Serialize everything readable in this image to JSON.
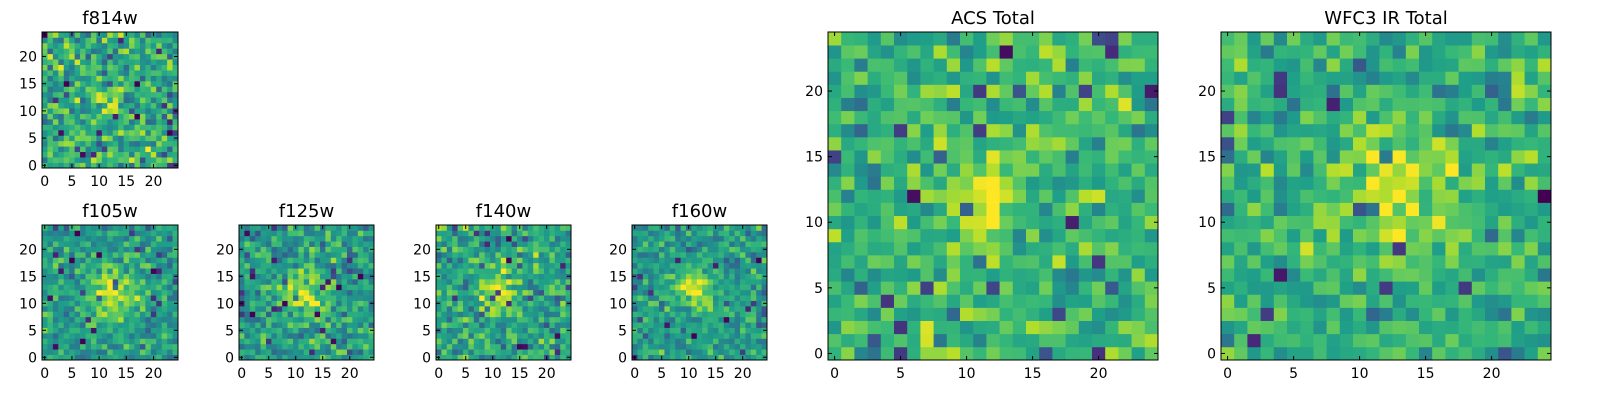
{
  "chart_data": [
    {
      "type": "heatmap",
      "title": "f814w",
      "size": 25,
      "xticks": [
        0,
        5,
        10,
        15,
        20
      ],
      "yticks": [
        0,
        5,
        10,
        15,
        20
      ],
      "xlim": [
        0,
        25
      ],
      "ylim": [
        0,
        25
      ],
      "grid": false,
      "colormap": "viridis",
      "source": {
        "x": 11.5,
        "y": 11.5,
        "sigma": 1.6,
        "peak": 0.32,
        "base": 0.62,
        "noise": 0.3
      }
    },
    {
      "type": "heatmap",
      "title": "f105w",
      "size": 25,
      "xticks": [
        0,
        5,
        10,
        15,
        20
      ],
      "yticks": [
        0,
        5,
        10,
        15,
        20
      ],
      "xlim": [
        0,
        25
      ],
      "ylim": [
        0,
        25
      ],
      "grid": false,
      "colormap": "viridis",
      "source": {
        "x": 12.5,
        "y": 11.5,
        "sigma": 3.0,
        "peak": 0.38,
        "base": 0.55,
        "noise": 0.22
      }
    },
    {
      "type": "heatmap",
      "title": "f125w",
      "size": 25,
      "xticks": [
        0,
        5,
        10,
        15,
        20
      ],
      "yticks": [
        0,
        5,
        10,
        15,
        20
      ],
      "xlim": [
        0,
        25
      ],
      "ylim": [
        0,
        25
      ],
      "grid": false,
      "colormap": "viridis",
      "source": {
        "x": 12.0,
        "y": 11.5,
        "sigma": 2.8,
        "peak": 0.35,
        "base": 0.55,
        "noise": 0.24
      }
    },
    {
      "type": "heatmap",
      "title": "f140w",
      "size": 25,
      "xticks": [
        0,
        5,
        10,
        15,
        20
      ],
      "yticks": [
        0,
        5,
        10,
        15,
        20
      ],
      "xlim": [
        0,
        25
      ],
      "ylim": [
        0,
        25
      ],
      "grid": false,
      "colormap": "viridis",
      "source": {
        "x": 11.5,
        "y": 12.5,
        "sigma": 2.6,
        "peak": 0.33,
        "base": 0.58,
        "noise": 0.26
      }
    },
    {
      "type": "heatmap",
      "title": "f160w",
      "size": 25,
      "xticks": [
        0,
        5,
        10,
        15,
        20
      ],
      "yticks": [
        0,
        5,
        10,
        15,
        20
      ],
      "xlim": [
        0,
        25
      ],
      "ylim": [
        0,
        25
      ],
      "grid": false,
      "colormap": "viridis",
      "source": {
        "x": 11.0,
        "y": 12.5,
        "sigma": 2.4,
        "peak": 0.4,
        "base": 0.55,
        "noise": 0.22
      }
    },
    {
      "type": "heatmap",
      "title": "ACS Total",
      "size": 25,
      "xticks": [
        0,
        5,
        10,
        15,
        20
      ],
      "yticks": [
        0,
        5,
        10,
        15,
        20
      ],
      "xlim": [
        0,
        25
      ],
      "ylim": [
        0,
        25
      ],
      "grid": false,
      "colormap": "viridis",
      "source": {
        "x": 11.0,
        "y": 11.5,
        "sigma": 1.9,
        "peak": 0.35,
        "base": 0.66,
        "noise": 0.22
      }
    },
    {
      "type": "heatmap",
      "title": "WFC3 IR Total",
      "size": 25,
      "xticks": [
        0,
        5,
        10,
        15,
        20
      ],
      "yticks": [
        0,
        5,
        10,
        15,
        20
      ],
      "xlim": [
        0,
        25
      ],
      "ylim": [
        0,
        25
      ],
      "grid": false,
      "colormap": "viridis",
      "source": {
        "x": 12.5,
        "y": 12.5,
        "sigma": 3.0,
        "peak": 0.3,
        "base": 0.64,
        "noise": 0.22
      }
    }
  ]
}
